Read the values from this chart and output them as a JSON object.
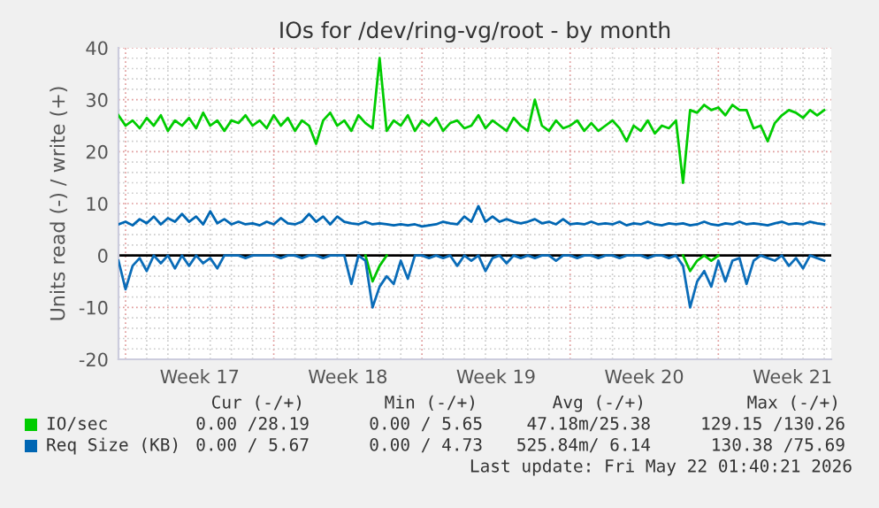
{
  "chart_data": {
    "type": "line",
    "title": "IOs for /dev/ring-vg/root - by month",
    "ylabel": "Units read (-) / write (+)",
    "x": [
      "2026-04-19T16:00",
      "2026-04-20T00:00",
      "2026-04-20T08:00",
      "2026-04-20T16:00",
      "2026-04-21T00:00",
      "2026-04-21T08:00",
      "2026-04-21T16:00",
      "2026-04-22T00:00",
      "2026-04-22T08:00",
      "2026-04-22T16:00",
      "2026-04-23T00:00",
      "2026-04-23T08:00",
      "2026-04-23T16:00",
      "2026-04-24T00:00",
      "2026-04-24T08:00",
      "2026-04-24T16:00",
      "2026-04-25T00:00",
      "2026-04-25T08:00",
      "2026-04-25T16:00",
      "2026-04-26T00:00",
      "2026-04-26T08:00",
      "2026-04-26T16:00",
      "2026-04-27T00:00",
      "2026-04-27T08:00",
      "2026-04-27T16:00",
      "2026-04-28T00:00",
      "2026-04-28T08:00",
      "2026-04-28T16:00",
      "2026-04-29T00:00",
      "2026-04-29T08:00",
      "2026-04-29T16:00",
      "2026-04-30T00:00",
      "2026-04-30T08:00",
      "2026-04-30T16:00",
      "2026-05-01T00:00",
      "2026-05-01T08:00",
      "2026-05-01T16:00",
      "2026-05-02T00:00",
      "2026-05-02T08:00",
      "2026-05-02T16:00",
      "2026-05-03T00:00",
      "2026-05-03T08:00",
      "2026-05-03T16:00",
      "2026-05-04T00:00",
      "2026-05-04T08:00",
      "2026-05-04T16:00",
      "2026-05-05T00:00",
      "2026-05-05T08:00",
      "2026-05-05T16:00",
      "2026-05-06T00:00",
      "2026-05-06T08:00",
      "2026-05-06T16:00",
      "2026-05-07T00:00",
      "2026-05-07T08:00",
      "2026-05-07T16:00",
      "2026-05-08T00:00",
      "2026-05-08T08:00",
      "2026-05-08T16:00",
      "2026-05-09T00:00",
      "2026-05-09T08:00",
      "2026-05-09T16:00",
      "2026-05-10T00:00",
      "2026-05-10T08:00",
      "2026-05-10T16:00",
      "2026-05-11T00:00",
      "2026-05-11T08:00",
      "2026-05-11T16:00",
      "2026-05-12T00:00",
      "2026-05-12T08:00",
      "2026-05-12T16:00",
      "2026-05-13T00:00",
      "2026-05-13T08:00",
      "2026-05-13T16:00",
      "2026-05-14T00:00",
      "2026-05-14T08:00",
      "2026-05-14T16:00",
      "2026-05-15T00:00",
      "2026-05-15T08:00",
      "2026-05-15T16:00",
      "2026-05-16T00:00",
      "2026-05-16T08:00",
      "2026-05-16T16:00",
      "2026-05-17T00:00",
      "2026-05-17T08:00",
      "2026-05-17T16:00",
      "2026-05-18T00:00",
      "2026-05-18T08:00",
      "2026-05-18T16:00",
      "2026-05-19T00:00",
      "2026-05-19T08:00",
      "2026-05-19T16:00",
      "2026-05-20T00:00",
      "2026-05-20T08:00",
      "2026-05-20T16:00",
      "2026-05-21T00:00",
      "2026-05-21T08:00",
      "2026-05-21T16:00",
      "2026-05-22T00:00",
      "2026-05-22T08:00",
      "2026-05-22T16:00",
      "2026-05-23T00:00"
    ],
    "series": [
      {
        "color": "#00c400",
        "values": [
          null,
          null,
          null,
          null,
          null,
          null,
          null,
          null,
          null,
          null,
          null,
          null,
          null,
          null,
          null,
          null,
          null,
          null,
          null,
          null,
          null,
          null,
          null,
          null,
          null,
          null,
          null,
          null,
          null,
          null,
          null,
          null,
          null,
          null,
          null,
          0,
          -5,
          -2,
          0,
          null,
          null,
          null,
          null,
          null,
          null,
          null,
          null,
          null,
          null,
          null,
          null,
          null,
          null,
          null,
          null,
          null,
          null,
          null,
          null,
          null,
          null,
          null,
          null,
          null,
          null,
          null,
          null,
          null,
          null,
          null,
          null,
          null,
          null,
          null,
          null,
          null,
          null,
          null,
          null,
          null,
          0,
          -3,
          -1,
          0,
          -1,
          0,
          null,
          null,
          null,
          null,
          null,
          null,
          null,
          null,
          null,
          null,
          null,
          null,
          null,
          null,
          null
        ]
      },
      {
        "color": "#0a6cb8",
        "values": [
          -1,
          -6.5,
          -2,
          -0.5,
          -3,
          0,
          -1.5,
          0,
          -2.5,
          0,
          -2,
          0,
          -1.5,
          -0.5,
          -2.5,
          0,
          0,
          0,
          -0.5,
          0,
          0,
          0,
          0,
          -0.5,
          0,
          0,
          -0.5,
          0,
          0,
          -0.5,
          0,
          0,
          0,
          -5.5,
          0,
          -1,
          -10,
          -6,
          -4,
          -5.5,
          -1,
          -4.5,
          0,
          0,
          -0.5,
          0,
          -0.5,
          0,
          -2,
          0,
          -1,
          0,
          -3,
          -0.5,
          0,
          -1.5,
          0,
          -0.5,
          0,
          -0.5,
          0,
          0,
          -1,
          0,
          0,
          -0.5,
          0,
          0,
          -0.5,
          0,
          0,
          -0.5,
          0,
          0,
          0,
          -0.5,
          0,
          0,
          -0.5,
          0,
          -2,
          -10,
          -5,
          -3,
          -6,
          -1,
          -5,
          -1,
          -0.5,
          -5.5,
          -1,
          0,
          -0.5,
          -1,
          0,
          -2,
          -0.5,
          -2.5,
          0,
          -0.5,
          -1
        ]
      },
      {
        "name": "IO/sec",
        "color": "#00cc00",
        "values": [
          27,
          25,
          26,
          24.5,
          26.5,
          25,
          27,
          24,
          26,
          25,
          26.5,
          24.5,
          27.5,
          25,
          26,
          24,
          26,
          25.5,
          27,
          25,
          26,
          24.5,
          27,
          25,
          26.5,
          24,
          26,
          25,
          21.5,
          26,
          27.5,
          25,
          26,
          24,
          27,
          25.5,
          24.5,
          38,
          24,
          26,
          25,
          27,
          24,
          26,
          25,
          26.5,
          24,
          25.5,
          26,
          24.5,
          25,
          27,
          24.5,
          26,
          25,
          24,
          26.5,
          25,
          24,
          30,
          25,
          24,
          26,
          24.5,
          25,
          26,
          24,
          25.5,
          24,
          25,
          26,
          24.5,
          22,
          25,
          24,
          26,
          23.5,
          25,
          24.5,
          26,
          14,
          28,
          27.5,
          29,
          28,
          28.5,
          27,
          29,
          28,
          28,
          24.5,
          25,
          22,
          25.5,
          27,
          28,
          27.5,
          26.5,
          28,
          27,
          28
        ]
      },
      {
        "name": "Req Size (KB)",
        "color": "#0066b3",
        "values": [
          6,
          6.5,
          5.8,
          7,
          6.2,
          7.5,
          6,
          7.2,
          6.5,
          8,
          6.5,
          7.5,
          6,
          8.5,
          6.2,
          7,
          6,
          6.5,
          6,
          6.2,
          5.8,
          6.5,
          6,
          7.2,
          6.2,
          6,
          6.5,
          8,
          6.5,
          7.5,
          6,
          7.5,
          6.5,
          6.2,
          6,
          6.5,
          6,
          6.2,
          6,
          5.8,
          6,
          5.8,
          6,
          5.6,
          5.8,
          6,
          6.5,
          6.2,
          6,
          7.5,
          6.5,
          9.5,
          6.5,
          7.5,
          6.5,
          7,
          6.5,
          6.2,
          6.5,
          7,
          6.2,
          6.5,
          6,
          7,
          6,
          6.2,
          6,
          6.5,
          6,
          6.2,
          6,
          6.5,
          5.8,
          6.2,
          6,
          6.5,
          6,
          5.8,
          6.2,
          6,
          6.2,
          5.8,
          6,
          6.5,
          6,
          5.8,
          6.2,
          6,
          6.5,
          6,
          6.2,
          6,
          5.8,
          6.2,
          6.5,
          6,
          6.2,
          6,
          6.5,
          6.2,
          6
        ]
      }
    ],
    "xlim": [
      "2026-04-19T16:00",
      "2026-05-23T08:00"
    ],
    "xticks": [
      {
        "value": "2026-04-23T12:00",
        "label": "Week 17"
      },
      {
        "value": "2026-04-30T12:00",
        "label": "Week 18"
      },
      {
        "value": "2026-05-07T12:00",
        "label": "Week 19"
      },
      {
        "value": "2026-05-14T12:00",
        "label": "Week 20"
      },
      {
        "value": "2026-05-21T12:00",
        "label": "Week 21"
      }
    ],
    "ylim": [
      -20,
      40
    ],
    "yticks": [
      -20,
      -10,
      0,
      10,
      20,
      30,
      40
    ],
    "ref_lines": [
      {
        "axis": "y",
        "value": 0,
        "color": "#000000"
      }
    ],
    "grid": true,
    "legend": "bottom",
    "annotations": [
      "Cur (-/+)",
      "Min (-/+)",
      "Avg (-/+)",
      "Max (-/+)",
      "0.00 /28.19",
      "0.00 / 5.65",
      "47.18m/25.38",
      "129.15 /130.26",
      "0.00 / 5.67",
      "0.00 / 4.73",
      "525.84m/ 6.14",
      "130.38 /75.69",
      "Last update: Fri May 22 01:40:21 2026"
    ]
  }
}
